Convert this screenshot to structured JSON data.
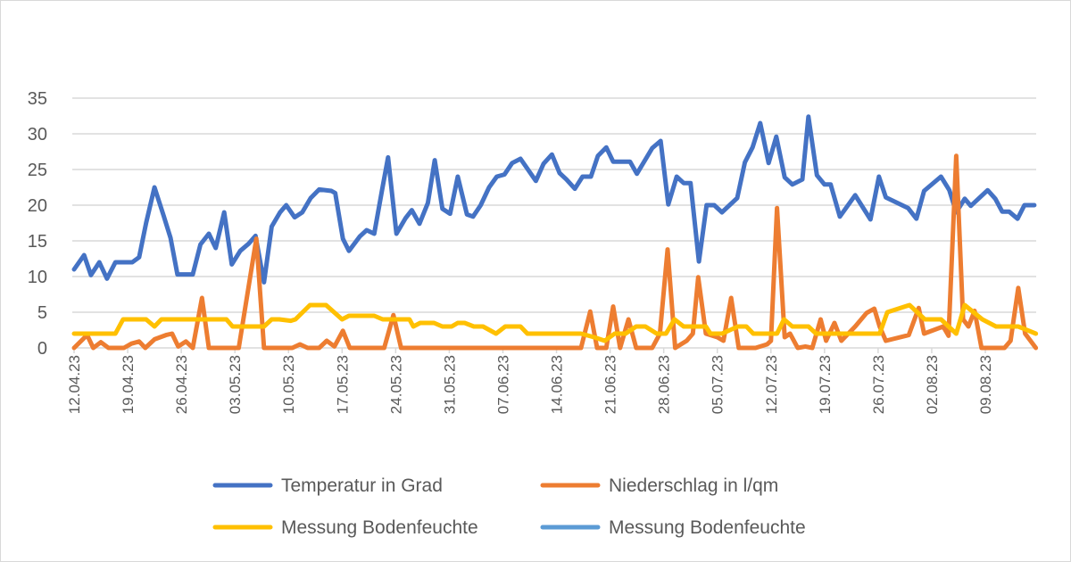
{
  "chart_data": {
    "type": "line",
    "title": "",
    "xlabel": "",
    "ylabel": "",
    "x_start_date": "12.04.23",
    "x_unit": "days since 12.04.23",
    "xlim": [
      0,
      125.6
    ],
    "ylim": [
      0,
      35
    ],
    "y_ticks": [
      "0",
      "5",
      "10",
      "15",
      "20",
      "25",
      "30",
      "35"
    ],
    "x_tick_labels": [
      "12.04.23",
      "19.04.23",
      "26.04.23",
      "03.05.23",
      "10.05.23",
      "17.05.23",
      "24.05.23",
      "31.05.23",
      "07.06.23",
      "14.06.23",
      "21.06.23",
      "28.06.23",
      "05.07.23",
      "12.07.23",
      "19.07.23",
      "26.07.23",
      "02.08.23",
      "09.08.23"
    ],
    "x_tick_step_days": 7,
    "grid": true,
    "legend_position": "bottom",
    "series": [
      {
        "name": "Temperatur in Grad",
        "color": "#4472C4",
        "points": [
          [
            0,
            11
          ],
          [
            1.3,
            13
          ],
          [
            2.2,
            10.2
          ],
          [
            3.3,
            12
          ],
          [
            4.3,
            9.7
          ],
          [
            5.4,
            12
          ],
          [
            7.6,
            12
          ],
          [
            8.5,
            12.7
          ],
          [
            9.4,
            17.5
          ],
          [
            10.5,
            22.5
          ],
          [
            11.7,
            18.5
          ],
          [
            12.6,
            15.4
          ],
          [
            13.5,
            10.3
          ],
          [
            15.5,
            10.3
          ],
          [
            16.5,
            14.5
          ],
          [
            17.6,
            16
          ],
          [
            18.5,
            14
          ],
          [
            19.6,
            19
          ],
          [
            20.6,
            11.7
          ],
          [
            21.7,
            13.6
          ],
          [
            22.8,
            14.6
          ],
          [
            23.7,
            15.7
          ],
          [
            24.8,
            9.2
          ],
          [
            25.8,
            17
          ],
          [
            26.9,
            19
          ],
          [
            27.7,
            20
          ],
          [
            28.8,
            18.3
          ],
          [
            29.8,
            19
          ],
          [
            30.9,
            21
          ],
          [
            32,
            22.2
          ],
          [
            33.6,
            22
          ],
          [
            34.1,
            21.7
          ],
          [
            35.1,
            15.3
          ],
          [
            35.9,
            13.6
          ],
          [
            37.3,
            15.6
          ],
          [
            38.2,
            16.5
          ],
          [
            39.2,
            16
          ],
          [
            40.2,
            22
          ],
          [
            41,
            26.7
          ],
          [
            42.1,
            16
          ],
          [
            43.3,
            18.2
          ],
          [
            44.1,
            19.3
          ],
          [
            45.1,
            17.4
          ],
          [
            46.2,
            20.3
          ],
          [
            47.1,
            26.3
          ],
          [
            48.1,
            19.5
          ],
          [
            49.1,
            18.8
          ],
          [
            50.1,
            24
          ],
          [
            51.3,
            18.7
          ],
          [
            52.1,
            18.4
          ],
          [
            53.1,
            20
          ],
          [
            54.2,
            22.5
          ],
          [
            55.2,
            24
          ],
          [
            56.2,
            24.3
          ],
          [
            57.2,
            25.9
          ],
          [
            58.3,
            26.5
          ],
          [
            60.3,
            23.4
          ],
          [
            61.3,
            25.8
          ],
          [
            62.4,
            27.1
          ],
          [
            63.4,
            24.5
          ],
          [
            64.3,
            23.6
          ],
          [
            65.4,
            22.3
          ],
          [
            66.4,
            24
          ],
          [
            67.5,
            24
          ],
          [
            68.4,
            26.9
          ],
          [
            69.5,
            28.1
          ],
          [
            70.4,
            26.1
          ],
          [
            72.6,
            26.1
          ],
          [
            73.5,
            24.4
          ],
          [
            75.5,
            28
          ],
          [
            76.6,
            29
          ],
          [
            77.6,
            20.1
          ],
          [
            78.7,
            24
          ],
          [
            79.6,
            23.1
          ],
          [
            80.5,
            23.1
          ],
          [
            81.6,
            12.1
          ],
          [
            82.6,
            20
          ],
          [
            83.6,
            20
          ],
          [
            84.6,
            19
          ],
          [
            86.6,
            21
          ],
          [
            87.6,
            26
          ],
          [
            88.6,
            28.1
          ],
          [
            89.6,
            31.5
          ],
          [
            90.7,
            25.9
          ],
          [
            91.7,
            29.6
          ],
          [
            92.8,
            23.9
          ],
          [
            93.8,
            22.9
          ],
          [
            95.1,
            23.6
          ],
          [
            95.9,
            32.4
          ],
          [
            97,
            24.2
          ],
          [
            98,
            22.9
          ],
          [
            98.8,
            22.9
          ],
          [
            100,
            18.4
          ],
          [
            102,
            21.4
          ],
          [
            104,
            18
          ],
          [
            105.1,
            24
          ],
          [
            106,
            21.1
          ],
          [
            108.9,
            19.6
          ],
          [
            110,
            18.1
          ],
          [
            111,
            22
          ],
          [
            113.2,
            24
          ],
          [
            114.3,
            22.1
          ],
          [
            115.2,
            19
          ],
          [
            116.3,
            20.9
          ],
          [
            117.1,
            19.9
          ],
          [
            119.3,
            22.1
          ],
          [
            120.3,
            20.9
          ],
          [
            121.2,
            19.1
          ],
          [
            122.1,
            19.1
          ],
          [
            123.2,
            18.1
          ],
          [
            124.1,
            20
          ],
          [
            125.4,
            20
          ]
        ]
      },
      {
        "name": "Niederschlag in l/qm",
        "color": "#ED7D31",
        "points": [
          [
            0,
            0
          ],
          [
            1.7,
            1.8
          ],
          [
            2.5,
            0
          ],
          [
            3.5,
            0.8
          ],
          [
            4.5,
            0
          ],
          [
            6.5,
            0
          ],
          [
            7.5,
            0.6
          ],
          [
            8.5,
            0.9
          ],
          [
            9.3,
            0
          ],
          [
            10.5,
            1.2
          ],
          [
            12,
            1.8
          ],
          [
            12.8,
            2
          ],
          [
            13.6,
            0.2
          ],
          [
            14.6,
            0.9
          ],
          [
            15.5,
            0
          ],
          [
            16.7,
            7
          ],
          [
            17.6,
            0
          ],
          [
            21.5,
            0
          ],
          [
            23.8,
            15.3
          ],
          [
            24.8,
            0
          ],
          [
            28.5,
            0
          ],
          [
            29.5,
            0.5
          ],
          [
            30.5,
            0
          ],
          [
            32,
            0
          ],
          [
            33,
            1
          ],
          [
            34,
            0.2
          ],
          [
            35.1,
            2.4
          ],
          [
            36,
            0
          ],
          [
            40.5,
            0
          ],
          [
            41.7,
            4.6
          ],
          [
            42.7,
            0
          ],
          [
            66.2,
            0
          ],
          [
            67.4,
            5.1
          ],
          [
            68.3,
            0
          ],
          [
            69.5,
            0
          ],
          [
            70.4,
            5.8
          ],
          [
            71.3,
            0
          ],
          [
            72.4,
            4
          ],
          [
            73.4,
            0
          ],
          [
            75.5,
            0
          ],
          [
            76.5,
            2
          ],
          [
            77.5,
            13.8
          ],
          [
            78.5,
            0
          ],
          [
            80,
            1
          ],
          [
            80.8,
            2
          ],
          [
            81.5,
            9.9
          ],
          [
            82.5,
            2
          ],
          [
            84,
            1.5
          ],
          [
            84.8,
            1
          ],
          [
            85.8,
            7
          ],
          [
            86.8,
            0
          ],
          [
            89,
            0
          ],
          [
            90.5,
            0.5
          ],
          [
            91,
            1
          ],
          [
            91.8,
            19.6
          ],
          [
            92.8,
            1.5
          ],
          [
            93.5,
            2
          ],
          [
            94.5,
            0
          ],
          [
            95.5,
            0.2
          ],
          [
            96.4,
            0
          ],
          [
            97.5,
            4
          ],
          [
            98.2,
            1
          ],
          [
            99.3,
            3.5
          ],
          [
            100.2,
            1
          ],
          [
            102,
            3
          ],
          [
            103.5,
            4.9
          ],
          [
            104.5,
            5.5
          ],
          [
            105.2,
            3
          ],
          [
            106,
            1
          ],
          [
            109,
            1.8
          ],
          [
            110.3,
            5.6
          ],
          [
            111,
            2
          ],
          [
            113.5,
            3
          ],
          [
            114.2,
            1.7
          ],
          [
            115.2,
            26.9
          ],
          [
            116.1,
            4
          ],
          [
            116.8,
            3
          ],
          [
            117.6,
            5.2
          ],
          [
            118.5,
            0
          ],
          [
            121.5,
            0
          ],
          [
            122.3,
            1
          ],
          [
            123.3,
            8.4
          ],
          [
            124.2,
            2
          ],
          [
            125.6,
            0
          ]
        ]
      },
      {
        "name": "Messung Bodenfeuchte",
        "color": "#FFC000",
        "points": [
          [
            0,
            2
          ],
          [
            5.4,
            2
          ],
          [
            6.4,
            4
          ],
          [
            9.4,
            4
          ],
          [
            10.5,
            3
          ],
          [
            11.4,
            4
          ],
          [
            19.9,
            4
          ],
          [
            20.7,
            3
          ],
          [
            24.8,
            3
          ],
          [
            25.8,
            4
          ],
          [
            26.8,
            4
          ],
          [
            28.3,
            3.8
          ],
          [
            28.9,
            4
          ],
          [
            30.8,
            6
          ],
          [
            32.9,
            6
          ],
          [
            35,
            4
          ],
          [
            35.9,
            4.5
          ],
          [
            39.2,
            4.5
          ],
          [
            40.3,
            4
          ],
          [
            43.8,
            4
          ],
          [
            44.3,
            3
          ],
          [
            45.2,
            3.5
          ],
          [
            47,
            3.5
          ],
          [
            48.1,
            3
          ],
          [
            49.3,
            3
          ],
          [
            50.1,
            3.5
          ],
          [
            51,
            3.5
          ],
          [
            52.2,
            3
          ],
          [
            53.4,
            3
          ],
          [
            55.1,
            2
          ],
          [
            56.3,
            3
          ],
          [
            58.3,
            3
          ],
          [
            59.2,
            2
          ],
          [
            66.2,
            2
          ],
          [
            67.9,
            1.5
          ],
          [
            69.3,
            1
          ],
          [
            70.6,
            2
          ],
          [
            72,
            2
          ],
          [
            73.4,
            3
          ],
          [
            74.6,
            3
          ],
          [
            76.1,
            2
          ],
          [
            77.3,
            2
          ],
          [
            78.4,
            4
          ],
          [
            79.6,
            3
          ],
          [
            82.5,
            3
          ],
          [
            83.1,
            2
          ],
          [
            84.6,
            2
          ],
          [
            86.7,
            3
          ],
          [
            87.8,
            3
          ],
          [
            88.7,
            2
          ],
          [
            91.8,
            2
          ],
          [
            92.7,
            4
          ],
          [
            93.8,
            3
          ],
          [
            95.9,
            3
          ],
          [
            96.9,
            2
          ],
          [
            105.2,
            2
          ],
          [
            106.2,
            5
          ],
          [
            109.1,
            6
          ],
          [
            111.1,
            4
          ],
          [
            113.2,
            4
          ],
          [
            115.2,
            2
          ],
          [
            116.3,
            6
          ],
          [
            118.6,
            4
          ],
          [
            120.4,
            3
          ],
          [
            123.3,
            3
          ],
          [
            125.6,
            2
          ]
        ]
      },
      {
        "name": "Messung Bodenfeuchte",
        "color": "#5B9BD5",
        "points": []
      }
    ]
  }
}
